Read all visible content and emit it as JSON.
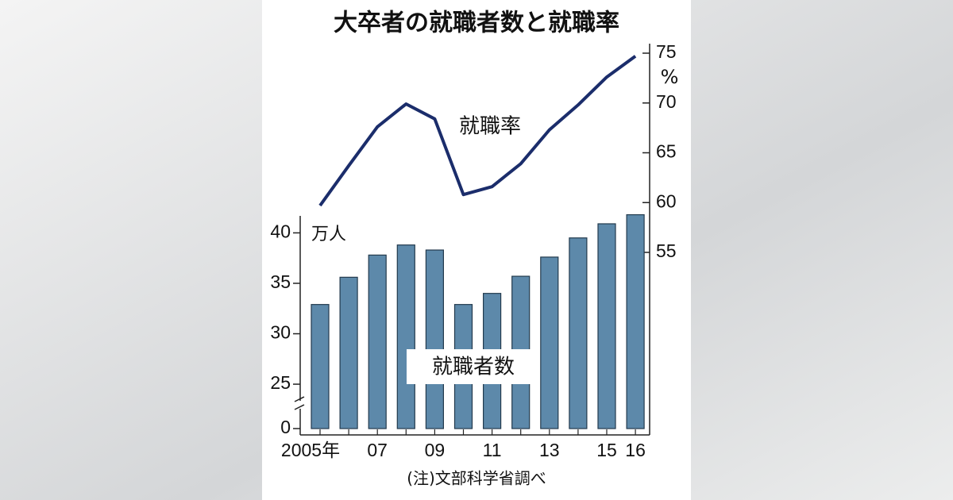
{
  "chart_data": {
    "type": "bar_line",
    "title": "大卒者の就職者数と就職率",
    "categories": [
      "2005年",
      null,
      "07",
      null,
      "09",
      null,
      "11",
      null,
      "13",
      null,
      "15",
      "16"
    ],
    "series": [
      {
        "name": "就職者数",
        "type": "bar",
        "color": "#5d89aa",
        "axis": "y",
        "values": [
          32.9,
          35.6,
          37.8,
          38.8,
          38.3,
          32.9,
          34.0,
          35.7,
          37.6,
          39.5,
          40.9,
          41.8
        ]
      },
      {
        "name": "就職率",
        "type": "line",
        "color": "#1b2d6b",
        "axis": "y2",
        "values": [
          59.7,
          63.7,
          67.6,
          69.9,
          68.4,
          60.8,
          61.6,
          63.9,
          67.3,
          69.8,
          72.6,
          74.7
        ]
      }
    ],
    "y_label": "万人",
    "y2_label": "%",
    "ylim": [
      0,
      42
    ],
    "ybreak": [
      0,
      20.6
    ],
    "yticks": [
      0,
      25,
      30,
      35,
      40
    ],
    "y2lim": [
      55,
      75
    ],
    "y2ticks": [
      55,
      60,
      65,
      70,
      75
    ],
    "note": "(注)文部科学省調べ"
  }
}
